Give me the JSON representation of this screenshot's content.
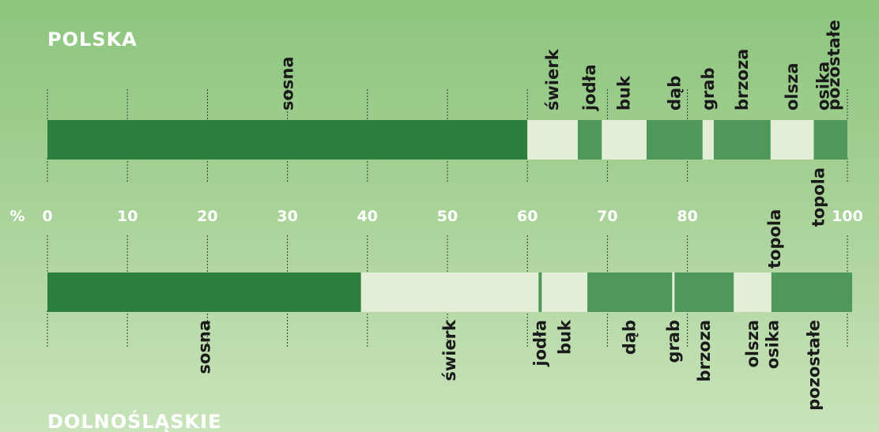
{
  "chart_data": {
    "type": "bar",
    "stacked": true,
    "orientation": "horizontal",
    "axis_unit": "%",
    "xlim": [
      0,
      100
    ],
    "ticks": [
      0,
      10,
      20,
      30,
      40,
      50,
      60,
      70,
      80,
      100
    ],
    "tick_labels": [
      "0",
      "10",
      "20",
      "30",
      "40",
      "50",
      "60",
      "70",
      "80",
      "100"
    ],
    "palette": {
      "dark": "#2c7f3d",
      "light": "#e2efd6",
      "mid": "#4d985a"
    },
    "bars": [
      {
        "title": "POLSKA",
        "segments": [
          {
            "name": "sosna",
            "value": 60.0,
            "color": "#2c7f3d"
          },
          {
            "name": "świerk",
            "value": 6.3,
            "color": "#e2efd6"
          },
          {
            "name": "jodła",
            "value": 3.0,
            "color": "#4d985a"
          },
          {
            "name": "buk",
            "value": 5.6,
            "color": "#e2efd6"
          },
          {
            "name": "dąb",
            "value": 7.0,
            "color": "#4d985a"
          },
          {
            "name": "grab",
            "value": 1.4,
            "color": "#e2efd6"
          },
          {
            "name": "brzoza",
            "value": 7.1,
            "color": "#4d985a"
          },
          {
            "name": "olsza",
            "value": 5.4,
            "color": "#e2efd6"
          },
          {
            "name": "osika",
            "value": 0.4,
            "color": "#4d985a"
          },
          {
            "name": "topola",
            "value": 0.4,
            "color": "#4d985a"
          },
          {
            "name": "pozostałe",
            "value": 3.4,
            "color": "#4d985a"
          }
        ]
      },
      {
        "title": "DOLNOŚLĄSKIE",
        "segments": [
          {
            "name": "sosna",
            "value": 39.2,
            "color": "#2c7f3d"
          },
          {
            "name": "świerk",
            "value": 22.2,
            "color": "#e2efd6"
          },
          {
            "name": "jodła",
            "value": 0.4,
            "color": "#4d985a"
          },
          {
            "name": "buk",
            "value": 5.7,
            "color": "#e2efd6"
          },
          {
            "name": "dąb",
            "value": 10.6,
            "color": "#4d985a"
          },
          {
            "name": "grab",
            "value": 0.3,
            "color": "#e2efd6"
          },
          {
            "name": "brzoza",
            "value": 7.4,
            "color": "#4d985a"
          },
          {
            "name": "olsza",
            "value": 4.7,
            "color": "#e2efd6"
          },
          {
            "name": "osika",
            "value": 0.3,
            "color": "#4d985a"
          },
          {
            "name": "topola",
            "value": 0.2,
            "color": "#4d985a"
          },
          {
            "name": "pozostałe",
            "value": 9.6,
            "color": "#4d985a"
          }
        ]
      }
    ]
  }
}
